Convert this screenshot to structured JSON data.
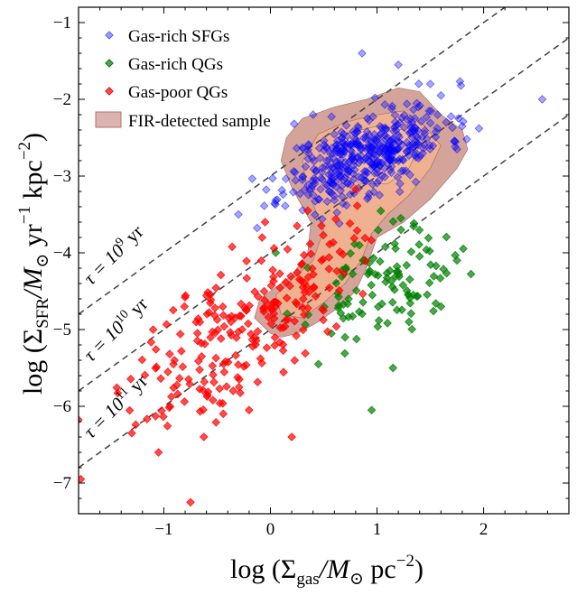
{
  "chart_data": {
    "type": "scatter",
    "xlim": [
      -1.8,
      2.8
    ],
    "ylim": [
      -7.4,
      -0.8
    ],
    "xticks": [
      -1,
      0,
      1,
      2
    ],
    "yticks": [
      -7,
      -6,
      -5,
      -4,
      -3,
      -2,
      -1
    ],
    "xtick_labels": [
      "−1",
      "0",
      "1",
      "2"
    ],
    "ytick_labels": [
      "−7",
      "−6",
      "−5",
      "−4",
      "−3",
      "−2",
      "−1"
    ],
    "xlabel": {
      "prefix": "log (Σ",
      "sub": "gas",
      "mid": "/M",
      "sub2": "⊙",
      "suffix": " pc",
      "sup": "−2",
      "end": ")"
    },
    "ylabel": {
      "prefix": "log (Σ",
      "sub": "SFR",
      "mid": "/M",
      "sub2": "⊙",
      "suffix": " yr",
      "sup1": "−1",
      "suffix2": " kpc",
      "sup2": "−2",
      "end": ")"
    },
    "depletion_lines": [
      {
        "log_tau": 9,
        "label_base": "τ = 10",
        "label_exp": "9",
        "label_unit": " yr"
      },
      {
        "log_tau": 10,
        "label_base": "τ = 10",
        "label_exp": "10",
        "label_unit": " yr"
      },
      {
        "log_tau": 11,
        "label_base": "τ = 10",
        "label_exp": "11",
        "label_unit": " yr"
      }
    ],
    "legend": [
      {
        "label": "Gas-rich SFGs",
        "color": "#0000ff",
        "kind": "marker"
      },
      {
        "label": "Gas-rich QGs",
        "color": "#008000",
        "kind": "marker"
      },
      {
        "label": "Gas-poor QGs",
        "color": "#ff0000",
        "kind": "marker"
      },
      {
        "label": "FIR-detected sample",
        "color": "#c78a85",
        "kind": "patch"
      }
    ],
    "contours": [
      {
        "level": "outer",
        "fill": "#cf9a8f",
        "points": [
          [
            0.0,
            -5.05
          ],
          [
            -0.15,
            -4.85
          ],
          [
            -0.1,
            -4.6
          ],
          [
            0.05,
            -4.45
          ],
          [
            0.2,
            -4.3
          ],
          [
            0.35,
            -4.0
          ],
          [
            0.38,
            -3.6
          ],
          [
            0.2,
            -3.15
          ],
          [
            0.1,
            -2.8
          ],
          [
            0.15,
            -2.5
          ],
          [
            0.3,
            -2.25
          ],
          [
            0.6,
            -2.1
          ],
          [
            0.9,
            -2.0
          ],
          [
            1.2,
            -1.85
          ],
          [
            1.4,
            -1.9
          ],
          [
            1.6,
            -2.2
          ],
          [
            1.8,
            -2.4
          ],
          [
            1.85,
            -2.65
          ],
          [
            1.75,
            -2.9
          ],
          [
            1.5,
            -3.3
          ],
          [
            1.25,
            -3.6
          ],
          [
            1.0,
            -3.8
          ],
          [
            0.9,
            -4.2
          ],
          [
            0.8,
            -4.5
          ],
          [
            0.65,
            -4.7
          ],
          [
            0.45,
            -4.9
          ],
          [
            0.25,
            -5.05
          ],
          [
            0.1,
            -5.1
          ]
        ]
      },
      {
        "level": "middle",
        "fill": "#f2b28e",
        "points": [
          [
            0.1,
            -4.8
          ],
          [
            0.05,
            -4.55
          ],
          [
            0.2,
            -4.35
          ],
          [
            0.4,
            -4.1
          ],
          [
            0.5,
            -3.7
          ],
          [
            0.35,
            -3.2
          ],
          [
            0.3,
            -2.8
          ],
          [
            0.45,
            -2.45
          ],
          [
            0.7,
            -2.3
          ],
          [
            1.0,
            -2.2
          ],
          [
            1.25,
            -2.15
          ],
          [
            1.45,
            -2.35
          ],
          [
            1.6,
            -2.6
          ],
          [
            1.5,
            -2.9
          ],
          [
            1.3,
            -3.25
          ],
          [
            1.1,
            -3.5
          ],
          [
            0.95,
            -3.75
          ],
          [
            0.85,
            -4.1
          ],
          [
            0.7,
            -4.4
          ],
          [
            0.5,
            -4.65
          ],
          [
            0.3,
            -4.85
          ]
        ]
      },
      {
        "level": "inner",
        "fill": "#f6bf95",
        "points": [
          [
            0.55,
            -2.75
          ],
          [
            0.7,
            -2.45
          ],
          [
            1.0,
            -2.35
          ],
          [
            1.25,
            -2.4
          ],
          [
            1.4,
            -2.6
          ],
          [
            1.3,
            -2.9
          ],
          [
            1.1,
            -3.1
          ],
          [
            0.85,
            -3.1
          ],
          [
            0.65,
            -2.95
          ]
        ]
      }
    ],
    "series": [
      {
        "name": "Gas-rich SFGs",
        "color": "#0000ff",
        "n": 430,
        "seed": 11,
        "cx": 0.9,
        "cy": -2.72,
        "sx": 0.38,
        "sy": 0.32,
        "rho": 0.6,
        "extras": [
          [
            0.86,
            -1.4
          ],
          [
            2.55,
            -2.0
          ],
          [
            -0.3,
            -3.5
          ],
          [
            0.3,
            -3.05
          ],
          [
            1.65,
            -2.3
          ],
          [
            1.8,
            -2.35
          ],
          [
            1.2,
            -1.55
          ],
          [
            1.5,
            -1.8
          ],
          [
            1.6,
            -1.95
          ],
          [
            0.4,
            -2.2
          ],
          [
            1.75,
            -2.65
          ]
        ]
      },
      {
        "name": "Gas-rich QGs",
        "color": "#008000",
        "n": 110,
        "seed": 23,
        "cx": 1.05,
        "cy": -4.4,
        "sx": 0.33,
        "sy": 0.33,
        "rho": 0.35,
        "extras": [
          [
            0.95,
            -6.05
          ],
          [
            0.45,
            -5.45
          ],
          [
            1.6,
            -4.7
          ],
          [
            1.75,
            -4.1
          ],
          [
            0.05,
            -4.0
          ],
          [
            1.15,
            -5.5
          ],
          [
            1.3,
            -4.9
          ],
          [
            0.7,
            -5.1
          ]
        ]
      },
      {
        "name": "Gas-poor QGs",
        "color": "#ff0000",
        "n": 235,
        "seed": 37,
        "cx": -0.25,
        "cy": -4.95,
        "sx": 0.5,
        "sy": 0.65,
        "rho": 0.7,
        "extras": [
          [
            -1.78,
            -6.95
          ],
          [
            -0.75,
            -7.25
          ],
          [
            -1.05,
            -6.6
          ],
          [
            -1.3,
            -6.35
          ],
          [
            0.2,
            -6.4
          ],
          [
            -0.2,
            -6.05
          ],
          [
            0.35,
            -3.45
          ],
          [
            0.25,
            -3.65
          ],
          [
            -0.05,
            -3.6
          ],
          [
            -0.35,
            -5.8
          ],
          [
            -0.9,
            -5.4
          ],
          [
            -1.1,
            -5.0
          ]
        ]
      }
    ]
  }
}
